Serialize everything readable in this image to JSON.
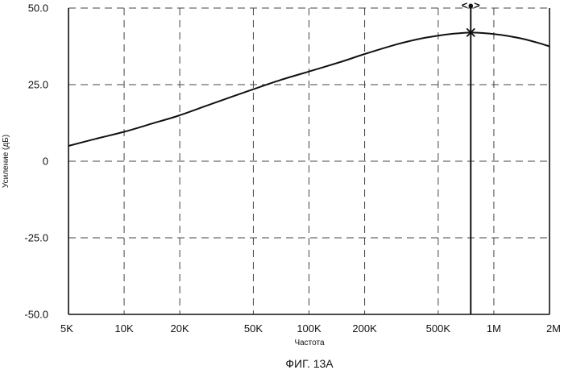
{
  "chart_data": {
    "type": "line",
    "xlabel": "Частота",
    "ylabel": "Усиление (дБ)",
    "caption": "ФИГ. 13А",
    "x_scale": "log",
    "xlim": [
      5000,
      2000000
    ],
    "ylim": [
      -50,
      50
    ],
    "grid": true,
    "x_ticks": [
      {
        "value": 5000,
        "label": "5K"
      },
      {
        "value": 10000,
        "label": "10K"
      },
      {
        "value": 20000,
        "label": "20K"
      },
      {
        "value": 50000,
        "label": "50K"
      },
      {
        "value": 100000,
        "label": "100K"
      },
      {
        "value": 200000,
        "label": "200K"
      },
      {
        "value": 500000,
        "label": "500K"
      },
      {
        "value": 1000000,
        "label": "1M"
      },
      {
        "value": 2000000,
        "label": "2M"
      }
    ],
    "y_ticks": [
      {
        "value": 50,
        "label": "50.0"
      },
      {
        "value": 25,
        "label": "25.0"
      },
      {
        "value": 0,
        "label": "0"
      },
      {
        "value": -25,
        "label": "-25.0"
      },
      {
        "value": -50,
        "label": "-50.0"
      }
    ],
    "series": [
      {
        "x": [
          5000,
          7000,
          10000,
          14000,
          20000,
          30000,
          50000,
          70000,
          100000,
          150000,
          200000,
          300000,
          400000,
          500000,
          600000,
          750000,
          900000,
          1100000,
          1400000,
          1700000,
          2000000
        ],
        "y": [
          5,
          7.3,
          9.6,
          12.2,
          15,
          18.8,
          23.5,
          26.5,
          29.3,
          32.5,
          35,
          38.2,
          40,
          41,
          41.6,
          42,
          41.8,
          41.2,
          40.1,
          38.8,
          37.5
        ]
      }
    ],
    "cursor": {
      "x": 750000,
      "y": 42,
      "handle_label": "<●>"
    }
  }
}
